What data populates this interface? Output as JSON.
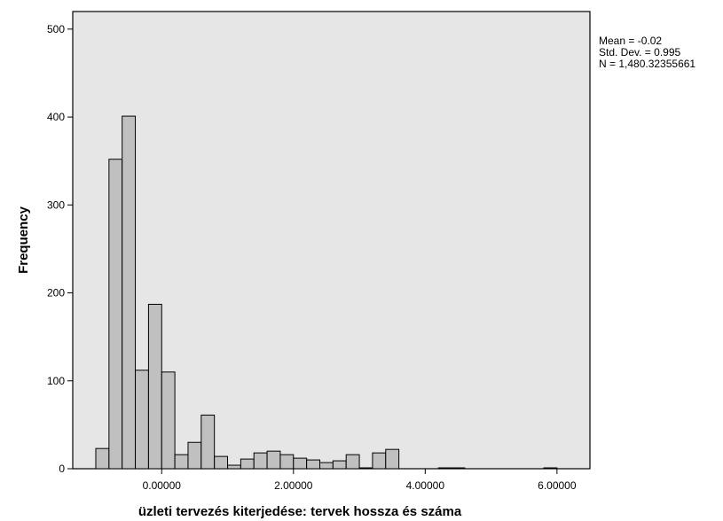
{
  "chart_data": {
    "type": "histogram",
    "title": "",
    "xlabel": "üzleti tervezés kiterjedése: tervek hossza és száma",
    "ylabel": "Frequency",
    "xlim": [
      -1.35,
      6.5
    ],
    "ylim": [
      0,
      520
    ],
    "bin_width": 0.2,
    "x_ticks": [
      {
        "value": 0,
        "label": "0.00000"
      },
      {
        "value": 2,
        "label": "2.00000"
      },
      {
        "value": 4,
        "label": "4.00000"
      },
      {
        "value": 6,
        "label": "6.00000"
      }
    ],
    "y_ticks": [
      {
        "value": 0,
        "label": "0"
      },
      {
        "value": 100,
        "label": "100"
      },
      {
        "value": 200,
        "label": "200"
      },
      {
        "value": 300,
        "label": "300"
      },
      {
        "value": 400,
        "label": "400"
      },
      {
        "value": 500,
        "label": "500"
      }
    ],
    "bins": [
      {
        "start": -1.0,
        "end": -0.8,
        "count": 23
      },
      {
        "start": -0.8,
        "end": -0.6,
        "count": 352
      },
      {
        "start": -0.6,
        "end": -0.4,
        "count": 401
      },
      {
        "start": -0.4,
        "end": -0.2,
        "count": 112
      },
      {
        "start": -0.2,
        "end": 0.0,
        "count": 187
      },
      {
        "start": 0.0,
        "end": 0.2,
        "count": 110
      },
      {
        "start": 0.2,
        "end": 0.4,
        "count": 16
      },
      {
        "start": 0.4,
        "end": 0.6,
        "count": 30
      },
      {
        "start": 0.6,
        "end": 0.8,
        "count": 61
      },
      {
        "start": 0.8,
        "end": 1.0,
        "count": 14
      },
      {
        "start": 1.0,
        "end": 1.2,
        "count": 4
      },
      {
        "start": 1.2,
        "end": 1.4,
        "count": 11
      },
      {
        "start": 1.4,
        "end": 1.6,
        "count": 18
      },
      {
        "start": 1.6,
        "end": 1.8,
        "count": 20
      },
      {
        "start": 1.8,
        "end": 2.0,
        "count": 16
      },
      {
        "start": 2.0,
        "end": 2.2,
        "count": 12
      },
      {
        "start": 2.2,
        "end": 2.4,
        "count": 10
      },
      {
        "start": 2.4,
        "end": 2.6,
        "count": 7
      },
      {
        "start": 2.6,
        "end": 2.8,
        "count": 9
      },
      {
        "start": 2.8,
        "end": 3.0,
        "count": 16
      },
      {
        "start": 3.0,
        "end": 3.2,
        "count": 1
      },
      {
        "start": 3.2,
        "end": 3.4,
        "count": 18
      },
      {
        "start": 3.4,
        "end": 3.6,
        "count": 22
      },
      {
        "start": 4.2,
        "end": 4.4,
        "count": 1
      },
      {
        "start": 4.4,
        "end": 4.6,
        "count": 1
      },
      {
        "start": 5.8,
        "end": 6.0,
        "count": 1
      }
    ],
    "statistics": [
      "Mean = -0.02",
      "Std. Dev. = 0.995",
      "N = 1,480.32355661"
    ],
    "colors": {
      "plot_background": "#e6e6e6",
      "bar_fill": "#c0c0c0",
      "bar_stroke": "#000000"
    },
    "grid": false
  }
}
